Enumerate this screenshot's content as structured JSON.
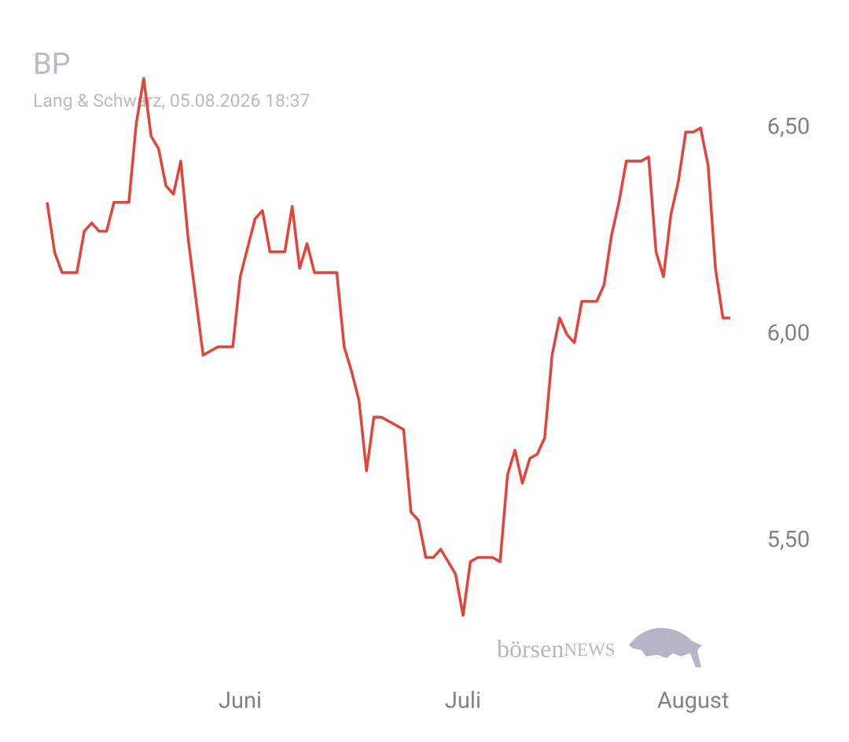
{
  "chart_data": {
    "type": "line",
    "title": "BP",
    "subtitle": "Lang & Schwarz, 05.08.2026 18:37",
    "watermark": {
      "brand": "börsen",
      "suffix": "NEWS"
    },
    "color": "#e5433a",
    "categories": [
      null,
      null,
      null,
      null,
      null,
      null,
      null,
      null,
      null,
      null,
      null,
      null,
      null,
      null,
      null,
      null,
      null,
      null,
      null,
      null,
      null,
      null,
      null,
      null,
      null,
      null,
      "Juni",
      null,
      null,
      null,
      null,
      null,
      null,
      null,
      null,
      null,
      null,
      null,
      null,
      null,
      null,
      null,
      null,
      null,
      null,
      null,
      null,
      null,
      null,
      null,
      null,
      null,
      null,
      null,
      null,
      null,
      "Juli",
      null,
      null,
      null,
      null,
      null,
      null,
      null,
      null,
      null,
      null,
      null,
      null,
      null,
      null,
      null,
      null,
      null,
      null,
      null,
      null,
      null,
      null,
      null,
      null,
      null,
      null,
      null,
      null,
      null,
      null,
      "August",
      null,
      null,
      null,
      null,
      null
    ],
    "values": [
      6.32,
      6.2,
      6.15,
      6.15,
      6.15,
      6.25,
      6.27,
      6.25,
      6.25,
      6.32,
      6.32,
      6.32,
      6.51,
      6.62,
      6.48,
      6.45,
      6.36,
      6.34,
      6.42,
      6.23,
      6.09,
      5.95,
      5.96,
      5.97,
      5.97,
      5.97,
      6.14,
      6.21,
      6.28,
      6.3,
      6.2,
      6.2,
      6.2,
      6.31,
      6.16,
      6.22,
      6.15,
      6.15,
      6.15,
      6.15,
      5.97,
      5.91,
      5.84,
      5.67,
      5.8,
      5.8,
      5.79,
      5.78,
      5.77,
      5.57,
      5.55,
      5.46,
      5.46,
      5.48,
      5.45,
      5.42,
      5.32,
      5.45,
      5.46,
      5.46,
      5.46,
      5.45,
      5.66,
      5.72,
      5.64,
      5.7,
      5.71,
      5.75,
      5.95,
      6.04,
      6.0,
      5.98,
      6.08,
      6.08,
      6.08,
      6.12,
      6.24,
      6.32,
      6.42,
      6.42,
      6.42,
      6.43,
      6.2,
      6.14,
      6.29,
      6.37,
      6.49,
      6.49,
      6.5,
      6.41,
      6.16,
      6.04,
      6.04
    ],
    "ylim": [
      5.2,
      6.75
    ],
    "yticks": [
      {
        "value": 5.5,
        "label": "5,50"
      },
      {
        "value": 6.0,
        "label": "6,00"
      },
      {
        "value": 6.5,
        "label": "6,50"
      }
    ],
    "grid": false
  }
}
